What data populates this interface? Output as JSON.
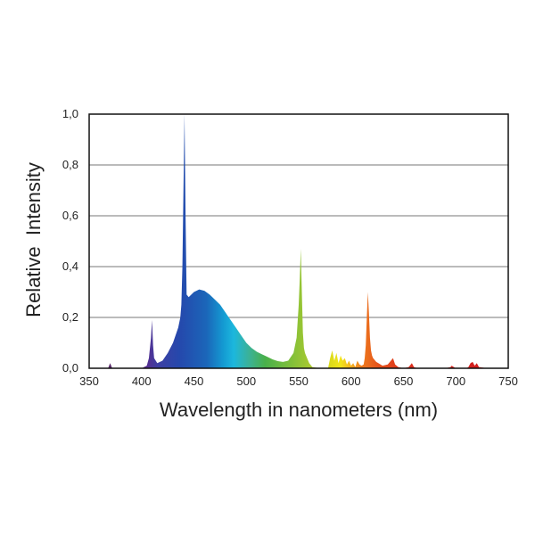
{
  "chart_data": {
    "type": "area",
    "xlabel": "Wavelength in nanometers (nm)",
    "ylabel": "Relative  Intensity",
    "xlim": [
      350,
      750
    ],
    "ylim": [
      0,
      1.0
    ],
    "grid": true,
    "x_ticks": [
      "350",
      "400",
      "450",
      "500",
      "550",
      "600",
      "650",
      "700",
      "750"
    ],
    "y_ticks": [
      "0,0",
      "0,2",
      "0,4",
      "0,6",
      "0,8",
      "1,0"
    ],
    "series": [
      {
        "x": [
          355,
          368,
          369,
          370,
          371,
          372,
          374,
          380,
          390,
          400,
          405,
          407,
          408,
          409,
          410,
          411,
          412,
          415,
          420,
          425,
          430,
          435,
          437,
          438,
          439,
          440,
          441,
          442,
          443,
          445,
          450,
          455,
          460,
          465,
          470,
          475,
          480,
          485,
          490,
          495,
          500,
          505,
          510,
          515,
          520,
          525,
          530,
          535,
          540,
          545,
          548,
          550,
          551,
          552,
          553,
          554,
          555,
          556,
          558,
          560,
          563,
          570,
          578,
          580,
          582,
          584,
          586,
          588,
          590,
          592,
          594,
          596,
          598,
          600,
          602,
          604,
          606,
          608,
          610,
          612,
          613,
          614,
          615,
          616,
          617,
          618,
          619,
          620,
          621,
          622,
          624,
          626,
          630,
          635,
          638,
          640,
          642,
          645,
          650,
          655,
          658,
          660,
          663,
          670,
          680,
          690,
          695,
          696,
          698,
          700,
          705,
          710,
          712,
          714,
          716,
          718,
          720,
          722,
          730,
          740
        ],
        "y": [
          0,
          0,
          0.01,
          0.02,
          0.01,
          0,
          0,
          0,
          0,
          0,
          0.01,
          0.04,
          0.08,
          0.12,
          0.19,
          0.09,
          0.04,
          0.02,
          0.03,
          0.06,
          0.1,
          0.16,
          0.2,
          0.25,
          0.4,
          0.7,
          1.0,
          0.6,
          0.29,
          0.28,
          0.3,
          0.31,
          0.305,
          0.29,
          0.27,
          0.25,
          0.22,
          0.19,
          0.16,
          0.13,
          0.1,
          0.08,
          0.065,
          0.055,
          0.045,
          0.035,
          0.028,
          0.025,
          0.03,
          0.06,
          0.12,
          0.25,
          0.35,
          0.47,
          0.3,
          0.14,
          0.08,
          0.06,
          0.04,
          0.02,
          0.005,
          0,
          0,
          0.04,
          0.07,
          0.03,
          0.06,
          0.02,
          0.05,
          0.03,
          0.04,
          0.015,
          0.03,
          0.01,
          0.02,
          0.005,
          0.03,
          0.015,
          0.01,
          0.015,
          0.04,
          0.09,
          0.2,
          0.3,
          0.22,
          0.12,
          0.07,
          0.05,
          0.04,
          0.035,
          0.025,
          0.02,
          0.01,
          0.015,
          0.03,
          0.04,
          0.015,
          0.005,
          0,
          0.005,
          0.02,
          0.005,
          0,
          0,
          0,
          0,
          0.005,
          0.01,
          0.005,
          0,
          0,
          0,
          0.005,
          0.02,
          0.025,
          0.01,
          0.02,
          0.005,
          0,
          0
        ]
      }
    ]
  }
}
